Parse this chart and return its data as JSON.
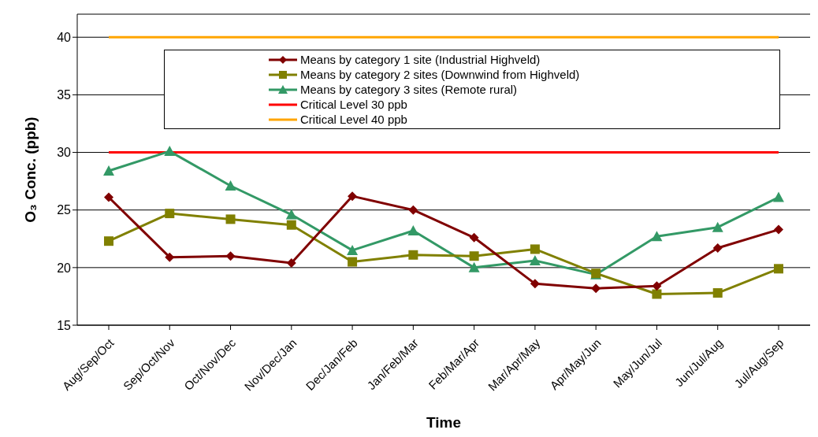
{
  "chart_data": {
    "type": "line",
    "xlabel": "Time",
    "ylabel": "O₃ Conc. (ppb)",
    "categories": [
      "Aug/Sep/Oct",
      "Sep/Oct/Nov",
      "Oct/Nov/Dec",
      "Nov/Dec/Jan",
      "Dec/Jan/Feb",
      "Jan/Feb/Mar",
      "Feb/Mar/Apr",
      "Mar/Apr/May",
      "Apr/May/Jun",
      "May/Jun/Jul",
      "Jun/Jul/Aug",
      "Jul/Aug/Sep"
    ],
    "series": [
      {
        "name": "Means by category 1 site (Industrial Highveld)",
        "color": "#800000",
        "marker": "diamond",
        "values": [
          26.1,
          20.9,
          21.0,
          20.4,
          26.2,
          25.0,
          22.6,
          18.6,
          18.2,
          18.4,
          21.7,
          23.3
        ]
      },
      {
        "name": "Means by category 2 sites (Downwind from Highveld)",
        "color": "#808000",
        "marker": "square",
        "values": [
          22.3,
          24.7,
          24.2,
          23.7,
          20.5,
          21.1,
          21.0,
          21.6,
          19.5,
          17.7,
          17.8,
          19.9
        ]
      },
      {
        "name": "Means by category 3 sites (Remote rural)",
        "color": "#339966",
        "marker": "triangle",
        "values": [
          28.4,
          30.1,
          27.1,
          24.6,
          21.5,
          23.2,
          20.0,
          20.6,
          19.4,
          22.7,
          23.5,
          26.1
        ]
      },
      {
        "name": "Critical Level 30 ppb",
        "color": "#ff0000",
        "marker": "none",
        "values": [
          30,
          30,
          30,
          30,
          30,
          30,
          30,
          30,
          30,
          30,
          30,
          30
        ]
      },
      {
        "name": "Critical Level 40 ppb",
        "color": "#ffa500",
        "marker": "none",
        "values": [
          40,
          40,
          40,
          40,
          40,
          40,
          40,
          40,
          40,
          40,
          40,
          40
        ]
      }
    ],
    "ylim": [
      15,
      42
    ],
    "yticks": [
      15,
      20,
      25,
      30,
      35,
      40
    ],
    "grid": "y",
    "legend": "top"
  }
}
